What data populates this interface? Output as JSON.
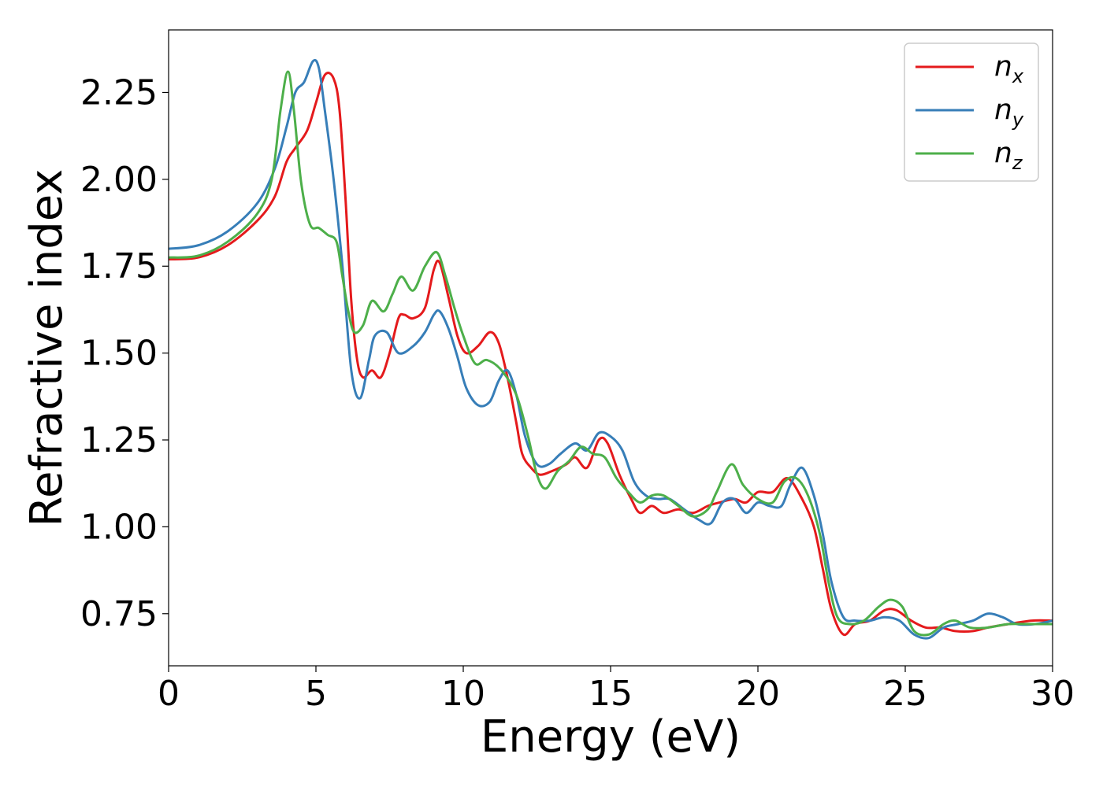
{
  "chart_data": {
    "type": "line",
    "title": "",
    "xlabel": "Energy (eV)",
    "ylabel": "Refractive index",
    "xlim": [
      0,
      30
    ],
    "ylim": [
      0.6,
      2.43
    ],
    "xticks": [
      0,
      5,
      10,
      15,
      20,
      25,
      30
    ],
    "xtick_labels": [
      "0",
      "5",
      "10",
      "15",
      "20",
      "25",
      "30"
    ],
    "yticks": [
      0.75,
      1.0,
      1.25,
      1.5,
      1.75,
      2.0,
      2.25
    ],
    "ytick_labels": [
      "0.75",
      "1.00",
      "1.25",
      "1.50",
      "1.75",
      "2.00",
      "2.25"
    ],
    "grid": false,
    "legend_position": "top-right",
    "series": [
      {
        "name": "n",
        "subscript": "x",
        "color": "#e41a1c",
        "points": [
          [
            0,
            1.77
          ],
          [
            1,
            1.775
          ],
          [
            2,
            1.81
          ],
          [
            3,
            1.88
          ],
          [
            3.6,
            1.95
          ],
          [
            4,
            2.05
          ],
          [
            4.3,
            2.09
          ],
          [
            4.7,
            2.14
          ],
          [
            5,
            2.22
          ],
          [
            5.3,
            2.3
          ],
          [
            5.6,
            2.29
          ],
          [
            5.8,
            2.2
          ],
          [
            6,
            1.95
          ],
          [
            6.2,
            1.65
          ],
          [
            6.4,
            1.48
          ],
          [
            6.6,
            1.43
          ],
          [
            6.9,
            1.45
          ],
          [
            7.2,
            1.43
          ],
          [
            7.5,
            1.5
          ],
          [
            7.8,
            1.6
          ],
          [
            8,
            1.61
          ],
          [
            8.3,
            1.6
          ],
          [
            8.7,
            1.63
          ],
          [
            9,
            1.74
          ],
          [
            9.2,
            1.76
          ],
          [
            9.5,
            1.66
          ],
          [
            9.8,
            1.55
          ],
          [
            10.1,
            1.5
          ],
          [
            10.5,
            1.52
          ],
          [
            10.9,
            1.56
          ],
          [
            11.2,
            1.53
          ],
          [
            11.5,
            1.43
          ],
          [
            11.8,
            1.3
          ],
          [
            12,
            1.21
          ],
          [
            12.3,
            1.17
          ],
          [
            12.6,
            1.15
          ],
          [
            13,
            1.16
          ],
          [
            13.5,
            1.18
          ],
          [
            13.8,
            1.2
          ],
          [
            14.2,
            1.17
          ],
          [
            14.6,
            1.25
          ],
          [
            14.9,
            1.24
          ],
          [
            15.3,
            1.15
          ],
          [
            15.7,
            1.08
          ],
          [
            16,
            1.04
          ],
          [
            16.4,
            1.06
          ],
          [
            16.8,
            1.04
          ],
          [
            17.3,
            1.05
          ],
          [
            17.8,
            1.04
          ],
          [
            18.3,
            1.06
          ],
          [
            18.7,
            1.07
          ],
          [
            19.2,
            1.08
          ],
          [
            19.6,
            1.07
          ],
          [
            20,
            1.1
          ],
          [
            20.5,
            1.1
          ],
          [
            21,
            1.14
          ],
          [
            21.5,
            1.08
          ],
          [
            21.9,
            1.0
          ],
          [
            22.2,
            0.88
          ],
          [
            22.5,
            0.76
          ],
          [
            22.9,
            0.69
          ],
          [
            23.3,
            0.72
          ],
          [
            23.8,
            0.73
          ],
          [
            24.3,
            0.76
          ],
          [
            24.7,
            0.76
          ],
          [
            25.2,
            0.73
          ],
          [
            25.7,
            0.71
          ],
          [
            26.2,
            0.71
          ],
          [
            26.7,
            0.7
          ],
          [
            27.3,
            0.7
          ],
          [
            27.8,
            0.71
          ],
          [
            28.5,
            0.72
          ],
          [
            29.3,
            0.73
          ],
          [
            30,
            0.73
          ]
        ]
      },
      {
        "name": "n",
        "subscript": "y",
        "color": "#377eb8",
        "points": [
          [
            0,
            1.8
          ],
          [
            1,
            1.81
          ],
          [
            2,
            1.85
          ],
          [
            3,
            1.93
          ],
          [
            3.6,
            2.03
          ],
          [
            4,
            2.15
          ],
          [
            4.3,
            2.25
          ],
          [
            4.6,
            2.28
          ],
          [
            4.9,
            2.34
          ],
          [
            5.1,
            2.32
          ],
          [
            5.3,
            2.2
          ],
          [
            5.6,
            2.0
          ],
          [
            5.9,
            1.75
          ],
          [
            6.2,
            1.45
          ],
          [
            6.5,
            1.37
          ],
          [
            6.8,
            1.48
          ],
          [
            7,
            1.55
          ],
          [
            7.4,
            1.56
          ],
          [
            7.8,
            1.5
          ],
          [
            8.3,
            1.52
          ],
          [
            8.7,
            1.56
          ],
          [
            9,
            1.61
          ],
          [
            9.2,
            1.62
          ],
          [
            9.5,
            1.57
          ],
          [
            9.8,
            1.49
          ],
          [
            10.1,
            1.4
          ],
          [
            10.5,
            1.35
          ],
          [
            10.9,
            1.36
          ],
          [
            11.2,
            1.42
          ],
          [
            11.5,
            1.45
          ],
          [
            11.8,
            1.38
          ],
          [
            12.1,
            1.26
          ],
          [
            12.5,
            1.18
          ],
          [
            12.9,
            1.18
          ],
          [
            13.3,
            1.21
          ],
          [
            13.8,
            1.24
          ],
          [
            14.2,
            1.22
          ],
          [
            14.6,
            1.27
          ],
          [
            15,
            1.26
          ],
          [
            15.4,
            1.22
          ],
          [
            15.8,
            1.13
          ],
          [
            16.2,
            1.09
          ],
          [
            16.6,
            1.08
          ],
          [
            17,
            1.08
          ],
          [
            17.5,
            1.05
          ],
          [
            18,
            1.02
          ],
          [
            18.4,
            1.01
          ],
          [
            18.8,
            1.07
          ],
          [
            19.2,
            1.08
          ],
          [
            19.6,
            1.04
          ],
          [
            20,
            1.07
          ],
          [
            20.4,
            1.06
          ],
          [
            20.8,
            1.06
          ],
          [
            21.1,
            1.12
          ],
          [
            21.5,
            1.17
          ],
          [
            21.9,
            1.09
          ],
          [
            22.2,
            0.98
          ],
          [
            22.5,
            0.84
          ],
          [
            22.9,
            0.74
          ],
          [
            23.3,
            0.73
          ],
          [
            23.8,
            0.73
          ],
          [
            24.3,
            0.74
          ],
          [
            24.8,
            0.73
          ],
          [
            25.3,
            0.69
          ],
          [
            25.8,
            0.68
          ],
          [
            26.3,
            0.71
          ],
          [
            26.8,
            0.72
          ],
          [
            27.3,
            0.73
          ],
          [
            27.8,
            0.75
          ],
          [
            28.3,
            0.74
          ],
          [
            28.8,
            0.72
          ],
          [
            29.4,
            0.72
          ],
          [
            30,
            0.73
          ]
        ]
      },
      {
        "name": "n",
        "subscript": "z",
        "color": "#4daf4a",
        "points": [
          [
            0,
            1.775
          ],
          [
            1,
            1.78
          ],
          [
            2,
            1.82
          ],
          [
            3,
            1.9
          ],
          [
            3.5,
            2.0
          ],
          [
            3.8,
            2.2
          ],
          [
            4.05,
            2.31
          ],
          [
            4.25,
            2.2
          ],
          [
            4.5,
            1.99
          ],
          [
            4.8,
            1.87
          ],
          [
            5.1,
            1.86
          ],
          [
            5.4,
            1.84
          ],
          [
            5.7,
            1.82
          ],
          [
            5.9,
            1.72
          ],
          [
            6.1,
            1.62
          ],
          [
            6.3,
            1.56
          ],
          [
            6.6,
            1.58
          ],
          [
            6.9,
            1.65
          ],
          [
            7.3,
            1.62
          ],
          [
            7.6,
            1.67
          ],
          [
            7.9,
            1.72
          ],
          [
            8.3,
            1.68
          ],
          [
            8.7,
            1.75
          ],
          [
            9.1,
            1.79
          ],
          [
            9.4,
            1.72
          ],
          [
            9.7,
            1.63
          ],
          [
            10,
            1.55
          ],
          [
            10.4,
            1.47
          ],
          [
            10.8,
            1.48
          ],
          [
            11.3,
            1.45
          ],
          [
            11.8,
            1.38
          ],
          [
            12.2,
            1.26
          ],
          [
            12.5,
            1.15
          ],
          [
            12.8,
            1.11
          ],
          [
            13.2,
            1.16
          ],
          [
            13.6,
            1.19
          ],
          [
            14,
            1.23
          ],
          [
            14.4,
            1.21
          ],
          [
            14.8,
            1.2
          ],
          [
            15.2,
            1.14
          ],
          [
            15.6,
            1.1
          ],
          [
            16,
            1.07
          ],
          [
            16.4,
            1.09
          ],
          [
            16.8,
            1.09
          ],
          [
            17.3,
            1.06
          ],
          [
            17.8,
            1.03
          ],
          [
            18.3,
            1.05
          ],
          [
            18.6,
            1.1
          ],
          [
            19.1,
            1.18
          ],
          [
            19.5,
            1.12
          ],
          [
            20,
            1.08
          ],
          [
            20.5,
            1.07
          ],
          [
            20.9,
            1.13
          ],
          [
            21.3,
            1.14
          ],
          [
            21.7,
            1.09
          ],
          [
            22.1,
            0.98
          ],
          [
            22.4,
            0.84
          ],
          [
            22.7,
            0.74
          ],
          [
            23.1,
            0.72
          ],
          [
            23.6,
            0.73
          ],
          [
            24.1,
            0.77
          ],
          [
            24.5,
            0.79
          ],
          [
            24.9,
            0.77
          ],
          [
            25.3,
            0.7
          ],
          [
            25.8,
            0.69
          ],
          [
            26.3,
            0.72
          ],
          [
            26.7,
            0.73
          ],
          [
            27.2,
            0.71
          ],
          [
            27.8,
            0.71
          ],
          [
            28.5,
            0.72
          ],
          [
            29.3,
            0.72
          ],
          [
            30,
            0.72
          ]
        ]
      }
    ]
  }
}
